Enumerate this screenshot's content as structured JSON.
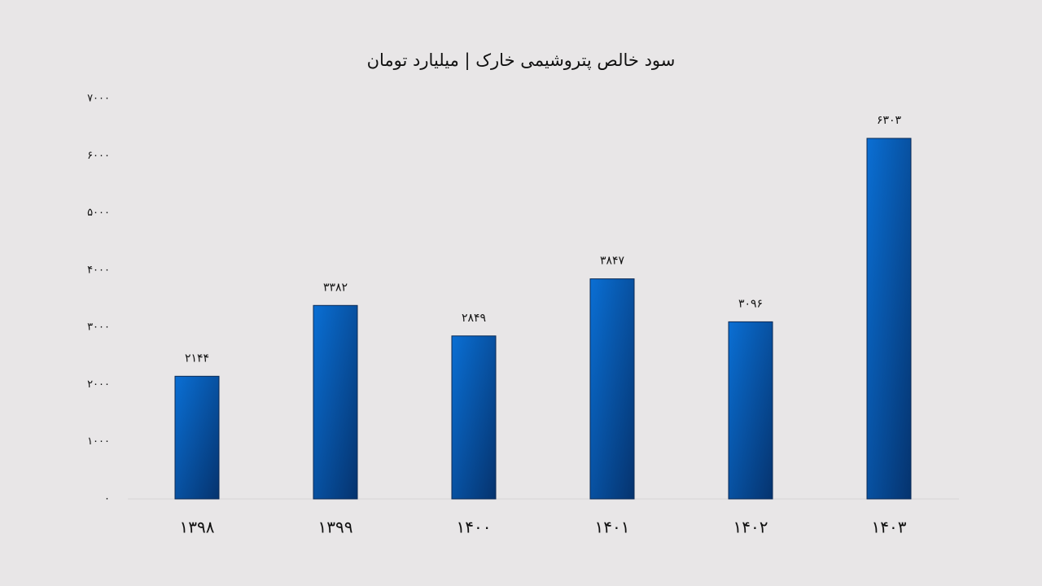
{
  "chart_data": {
    "type": "bar",
    "title": "سود خالص پتروشیمی خارک | میلیارد تومان",
    "categories": [
      "۱۳۹۸",
      "۱۳۹۹",
      "۱۴۰۰",
      "۱۴۰۱",
      "۱۴۰۲",
      "۱۴۰۳"
    ],
    "values": [
      2144,
      3382,
      2849,
      3847,
      3096,
      6303
    ],
    "value_labels": [
      "۲۱۴۴",
      "۳۳۸۲",
      "۲۸۴۹",
      "۳۸۴۷",
      "۳۰۹۶",
      "۶۳۰۳"
    ],
    "color": "#0a6fd4",
    "ylim": [
      0,
      7000
    ],
    "yticks": [
      {
        "value": 0,
        "label": "۰"
      },
      {
        "value": 1000,
        "label": "۱۰۰۰"
      },
      {
        "value": 2000,
        "label": "۲۰۰۰"
      },
      {
        "value": 3000,
        "label": "۳۰۰۰"
      },
      {
        "value": 4000,
        "label": "۴۰۰۰"
      },
      {
        "value": 5000,
        "label": "۵۰۰۰"
      },
      {
        "value": 6000,
        "label": "۶۰۰۰"
      },
      {
        "value": 7000,
        "label": "۷۰۰۰"
      }
    ],
    "grid": false
  }
}
